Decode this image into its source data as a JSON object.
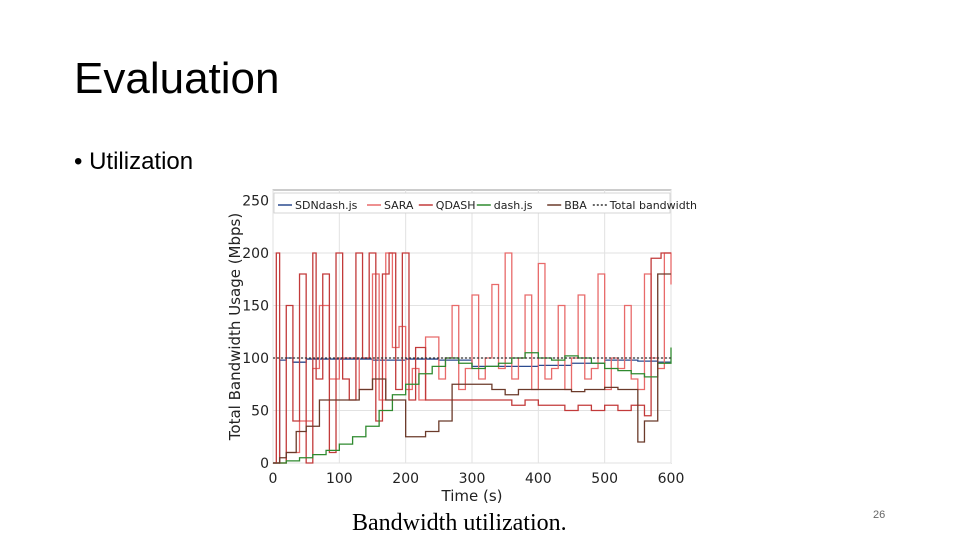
{
  "slide": {
    "title": "Evaluation",
    "bullet": "• Utilization",
    "caption": "Bandwidth utilization.",
    "page_number": "26"
  },
  "chart_data": {
    "type": "line",
    "title": "",
    "xlabel": "Time (s)",
    "ylabel": "Total Bandwidth Usage (Mbps)",
    "xlim": [
      0,
      600
    ],
    "ylim": [
      0,
      260
    ],
    "xticks": [
      0,
      100,
      200,
      300,
      400,
      500,
      600
    ],
    "yticks": [
      0,
      50,
      100,
      150,
      200,
      250
    ],
    "grid": true,
    "legend_position": "top",
    "series": [
      {
        "name": "SDNdash.js",
        "color": "#2b4b8f",
        "style": "solid",
        "x": [
          0,
          10,
          20,
          30,
          50,
          100,
          150,
          200,
          250,
          300,
          350,
          400,
          450,
          500,
          550,
          580,
          600
        ],
        "y": [
          0,
          98,
          100,
          96,
          99,
          99,
          98,
          99,
          98,
          92,
          92,
          93,
          95,
          98,
          97,
          96,
          96
        ]
      },
      {
        "name": "SARA",
        "color": "#e86a6a",
        "style": "solid",
        "x": [
          0,
          20,
          40,
          60,
          70,
          85,
          100,
          130,
          150,
          160,
          170,
          180,
          190,
          200,
          210,
          220,
          230,
          250,
          260,
          270,
          280,
          290,
          300,
          310,
          320,
          330,
          340,
          350,
          360,
          370,
          380,
          390,
          400,
          410,
          420,
          430,
          440,
          450,
          460,
          470,
          480,
          490,
          500,
          510,
          520,
          530,
          540,
          550,
          560,
          570,
          580,
          590,
          600
        ],
        "y": [
          0,
          10,
          40,
          90,
          150,
          80,
          100,
          70,
          180,
          60,
          200,
          110,
          130,
          70,
          90,
          60,
          120,
          80,
          100,
          150,
          70,
          90,
          160,
          80,
          100,
          170,
          90,
          200,
          80,
          100,
          160,
          70,
          190,
          80,
          90,
          150,
          70,
          100,
          160,
          80,
          90,
          180,
          70,
          100,
          90,
          150,
          80,
          70,
          180,
          100,
          90,
          200,
          170
        ]
      },
      {
        "name": "QDASH",
        "color": "#c23a3a",
        "style": "solid",
        "x": [
          0,
          5,
          10,
          20,
          30,
          40,
          50,
          60,
          65,
          75,
          85,
          95,
          105,
          115,
          125,
          135,
          145,
          155,
          165,
          175,
          185,
          195,
          205,
          215,
          230,
          260,
          300,
          340,
          360,
          380,
          400,
          420,
          440,
          460,
          480,
          500,
          520,
          540,
          560,
          570,
          585,
          600
        ],
        "y": [
          0,
          200,
          0,
          150,
          40,
          180,
          0,
          200,
          80,
          180,
          10,
          200,
          80,
          60,
          200,
          100,
          200,
          40,
          180,
          200,
          70,
          200,
          60,
          110,
          60,
          60,
          60,
          60,
          55,
          60,
          55,
          55,
          50,
          55,
          50,
          55,
          50,
          55,
          45,
          195,
          200,
          200
        ]
      },
      {
        "name": "dash.js",
        "color": "#2f8a2f",
        "style": "solid",
        "x": [
          0,
          20,
          40,
          60,
          80,
          100,
          120,
          140,
          160,
          180,
          200,
          220,
          240,
          260,
          280,
          300,
          320,
          340,
          360,
          380,
          400,
          420,
          440,
          460,
          480,
          500,
          520,
          540,
          560,
          580,
          600
        ],
        "y": [
          0,
          2,
          5,
          8,
          12,
          18,
          25,
          35,
          50,
          65,
          75,
          85,
          92,
          100,
          95,
          90,
          92,
          95,
          100,
          105,
          100,
          98,
          102,
          100,
          95,
          90,
          88,
          85,
          82,
          95,
          110
        ]
      },
      {
        "name": "BBA",
        "color": "#6b3a2a",
        "style": "solid",
        "x": [
          0,
          10,
          20,
          35,
          50,
          70,
          100,
          130,
          150,
          170,
          200,
          230,
          250,
          270,
          300,
          330,
          350,
          370,
          400,
          430,
          450,
          470,
          500,
          520,
          550,
          560,
          580,
          600
        ],
        "y": [
          0,
          5,
          10,
          30,
          35,
          60,
          60,
          70,
          80,
          60,
          25,
          30,
          40,
          75,
          75,
          70,
          65,
          70,
          70,
          70,
          68,
          70,
          72,
          70,
          20,
          40,
          180,
          180
        ]
      },
      {
        "name": "Total bandwidth",
        "color": "#333333",
        "style": "dotted",
        "x": [
          0,
          600
        ],
        "y": [
          100,
          100
        ]
      }
    ]
  }
}
